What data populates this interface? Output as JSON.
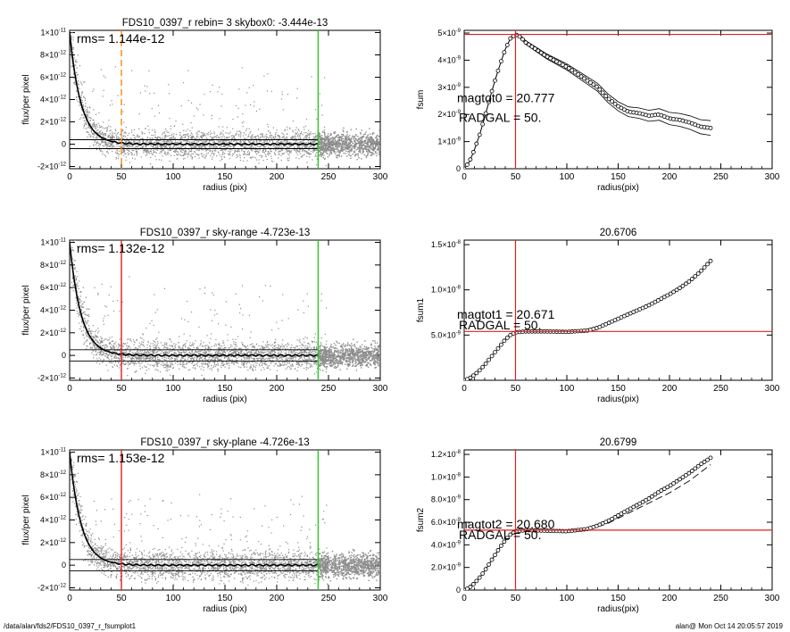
{
  "footer": {
    "path": "/data/alan/fds2/FDS10_0397_r_fsumplot1",
    "stamp": "alan@  Mon Oct 14 20:05:57 2019"
  },
  "colors": {
    "axis": "#000000",
    "scatter": "#8c8c8c",
    "profile": "#000000",
    "red": "#e02020",
    "green": "#22cc22",
    "orange": "#ff8800"
  },
  "chart_data": [
    {
      "id": "profile1",
      "type": "scatter",
      "title": "FDS10_0397_r rebin= 3    skybox0: -3.444e-13",
      "xlabel": "radius (pix)",
      "ylabel": "flux/per pixel",
      "xlim": [
        0,
        300
      ],
      "ylim": [
        -2.2e-12,
        1.02e-11
      ],
      "xticks": [
        0,
        50,
        100,
        150,
        200,
        250,
        300
      ],
      "yticks": [
        {
          "v": -2e-12,
          "m": "-2",
          "e": "-12"
        },
        {
          "v": 0,
          "m": "0",
          "e": ""
        },
        {
          "v": 2e-12,
          "m": "2",
          "e": "-12"
        },
        {
          "v": 4e-12,
          "m": "4",
          "e": "-12"
        },
        {
          "v": 6e-12,
          "m": "6",
          "e": "-12"
        },
        {
          "v": 8e-12,
          "m": "8",
          "e": "-12"
        },
        {
          "v": 1e-11,
          "m": "1",
          "e": "-11"
        }
      ],
      "annotation": "rms= 1.144e-12",
      "rms_band": [
        -4e-13,
        4e-13
      ],
      "vlines": [
        {
          "x": 50,
          "color": "orange",
          "dashed": true
        },
        {
          "x": 240,
          "color": "green",
          "dashed": false
        }
      ],
      "profile_peak": 1e-11,
      "profile_scale": 11,
      "scatter_spread": 1.144e-12,
      "scatter_extent": 248
    },
    {
      "id": "fsum1",
      "type": "line",
      "title": "",
      "xlabel": "radius(pix)",
      "ylabel": "fsum",
      "xlim": [
        0,
        300
      ],
      "ylim": [
        0,
        5.1e-09
      ],
      "xticks": [
        0,
        50,
        100,
        150,
        200,
        250,
        300
      ],
      "yticks": [
        {
          "v": 0,
          "m": "0",
          "e": ""
        },
        {
          "v": 1e-09,
          "m": "1",
          "e": "-9"
        },
        {
          "v": 2e-09,
          "m": "2",
          "e": "-9"
        },
        {
          "v": 3e-09,
          "m": "3",
          "e": "-9"
        },
        {
          "v": 4e-09,
          "m": "4",
          "e": "-9"
        },
        {
          "v": 5e-09,
          "m": "5",
          "e": "-9"
        }
      ],
      "annotations": [
        "magtot0 =  20.777",
        "RADGAL =     50."
      ],
      "hline": 4.95e-09,
      "vline": 50,
      "curve": [
        [
          0,
          0.0
        ],
        [
          5,
          2.5e-10
        ],
        [
          10,
          7e-10
        ],
        [
          15,
          1.25e-09
        ],
        [
          20,
          1.9e-09
        ],
        [
          25,
          2.6e-09
        ],
        [
          30,
          3.25e-09
        ],
        [
          35,
          3.85e-09
        ],
        [
          40,
          4.4e-09
        ],
        [
          45,
          4.8e-09
        ],
        [
          50,
          4.95e-09
        ],
        [
          55,
          4.85e-09
        ],
        [
          60,
          4.65e-09
        ],
        [
          70,
          4.4e-09
        ],
        [
          80,
          4.15e-09
        ],
        [
          90,
          3.95e-09
        ],
        [
          100,
          3.75e-09
        ],
        [
          110,
          3.5e-09
        ],
        [
          120,
          3.25e-09
        ],
        [
          130,
          3e-09
        ],
        [
          140,
          2.6e-09
        ],
        [
          150,
          2.3e-09
        ],
        [
          160,
          2.1e-09
        ],
        [
          170,
          2.05e-09
        ],
        [
          180,
          1.95e-09
        ],
        [
          190,
          2e-09
        ],
        [
          200,
          1.85e-09
        ],
        [
          210,
          1.8e-09
        ],
        [
          220,
          1.7e-09
        ],
        [
          230,
          1.55e-09
        ],
        [
          240,
          1.5e-09
        ]
      ],
      "envelope": 2.7e-10
    },
    {
      "id": "profile2",
      "type": "scatter",
      "title": "FDS10_0397_r sky-range -4.723e-13",
      "xlabel": "radius (pix)",
      "ylabel": "flux/per pixel",
      "xlim": [
        0,
        300
      ],
      "ylim": [
        -2.2e-12,
        1.02e-11
      ],
      "xticks": [
        0,
        50,
        100,
        150,
        200,
        250,
        300
      ],
      "yticks": [
        {
          "v": -2e-12,
          "m": "-2",
          "e": "-12"
        },
        {
          "v": 0,
          "m": "0",
          "e": ""
        },
        {
          "v": 2e-12,
          "m": "2",
          "e": "-12"
        },
        {
          "v": 4e-12,
          "m": "4",
          "e": "-12"
        },
        {
          "v": 6e-12,
          "m": "6",
          "e": "-12"
        },
        {
          "v": 8e-12,
          "m": "8",
          "e": "-12"
        },
        {
          "v": 1e-11,
          "m": "1",
          "e": "-11"
        }
      ],
      "annotation": "rms= 1.132e-12",
      "rms_band": [
        -5e-13,
        5e-13
      ],
      "vlines": [
        {
          "x": 50,
          "color": "red",
          "dashed": false
        },
        {
          "x": 240,
          "color": "green",
          "dashed": false
        }
      ],
      "profile_peak": 1e-11,
      "profile_scale": 11,
      "scatter_spread": 1.132e-12,
      "scatter_extent": 248
    },
    {
      "id": "fsum2",
      "type": "line",
      "title": "20.6706",
      "xlabel": "radius(pix)",
      "ylabel": "fsum1",
      "xlim": [
        0,
        300
      ],
      "ylim": [
        0,
        1.55e-08
      ],
      "xticks": [
        0,
        50,
        100,
        150,
        200,
        250,
        300
      ],
      "yticks": [
        {
          "v": 5e-09,
          "m": "5.0",
          "e": "-9"
        },
        {
          "v": 1e-08,
          "m": "1.0",
          "e": "-8"
        },
        {
          "v": 1.5e-08,
          "m": "1.5",
          "e": "-8"
        }
      ],
      "annotations": [
        "magtot1 =  20.671",
        "RADGAL =     50."
      ],
      "hline": 5.4e-09,
      "vline": 50,
      "curve": [
        [
          0,
          0.0
        ],
        [
          5,
          2e-10
        ],
        [
          10,
          6e-10
        ],
        [
          15,
          1.1e-09
        ],
        [
          20,
          1.7e-09
        ],
        [
          25,
          2.4e-09
        ],
        [
          30,
          3.1e-09
        ],
        [
          35,
          3.8e-09
        ],
        [
          40,
          4.5e-09
        ],
        [
          45,
          5e-09
        ],
        [
          50,
          5.3e-09
        ],
        [
          60,
          5.4e-09
        ],
        [
          80,
          5.4e-09
        ],
        [
          100,
          5.35e-09
        ],
        [
          120,
          5.5e-09
        ],
        [
          130,
          5.8e-09
        ],
        [
          140,
          6.3e-09
        ],
        [
          150,
          6.8e-09
        ],
        [
          160,
          7.3e-09
        ],
        [
          170,
          7.8e-09
        ],
        [
          180,
          8.3e-09
        ],
        [
          190,
          8.9e-09
        ],
        [
          200,
          9.5e-09
        ],
        [
          210,
          1.02e-08
        ],
        [
          220,
          1.1e-08
        ],
        [
          230,
          1.2e-08
        ],
        [
          240,
          1.32e-08
        ]
      ],
      "envelope": 0
    },
    {
      "id": "profile3",
      "type": "scatter",
      "title": "FDS10_0397_r sky-plane -4.726e-13",
      "xlabel": "radius (pix)",
      "ylabel": "flux/per pixel",
      "xlim": [
        0,
        300
      ],
      "ylim": [
        -2.2e-12,
        1.02e-11
      ],
      "xticks": [
        0,
        50,
        100,
        150,
        200,
        250,
        300
      ],
      "yticks": [
        {
          "v": -2e-12,
          "m": "-2",
          "e": "-12"
        },
        {
          "v": 0,
          "m": "0",
          "e": ""
        },
        {
          "v": 2e-12,
          "m": "2",
          "e": "-12"
        },
        {
          "v": 4e-12,
          "m": "4",
          "e": "-12"
        },
        {
          "v": 6e-12,
          "m": "6",
          "e": "-12"
        },
        {
          "v": 8e-12,
          "m": "8",
          "e": "-12"
        },
        {
          "v": 1e-11,
          "m": "1",
          "e": "-11"
        }
      ],
      "annotation": "rms= 1.153e-12",
      "rms_band": [
        -5e-13,
        5e-13
      ],
      "vlines": [
        {
          "x": 50,
          "color": "red",
          "dashed": false
        },
        {
          "x": 240,
          "color": "green",
          "dashed": false
        }
      ],
      "profile_peak": 1e-11,
      "profile_scale": 11,
      "scatter_spread": 1.153e-12,
      "scatter_extent": 248
    },
    {
      "id": "fsum3",
      "type": "line",
      "title": "20.6799",
      "xlabel": "radius(pix)",
      "ylabel": "fsum2",
      "xlim": [
        0,
        300
      ],
      "ylim": [
        0,
        1.24e-08
      ],
      "xticks": [
        0,
        50,
        100,
        150,
        200,
        250,
        300
      ],
      "yticks": [
        {
          "v": 0,
          "m": "0",
          "e": ""
        },
        {
          "v": 2e-09,
          "m": "2.0",
          "e": "-9"
        },
        {
          "v": 4e-09,
          "m": "4.0",
          "e": "-9"
        },
        {
          "v": 6e-09,
          "m": "6.0",
          "e": "-9"
        },
        {
          "v": 8e-09,
          "m": "8.0",
          "e": "-9"
        },
        {
          "v": 1e-08,
          "m": "1.0",
          "e": "-8"
        },
        {
          "v": 1.2e-08,
          "m": "1.2",
          "e": "-8"
        }
      ],
      "annotations": [
        "magtot2 =  20.680",
        "RADGAL =     50."
      ],
      "hline": 5.3e-09,
      "vline": 50,
      "curve": [
        [
          0,
          0.0
        ],
        [
          5,
          2e-10
        ],
        [
          10,
          6e-10
        ],
        [
          15,
          1.1e-09
        ],
        [
          20,
          1.7e-09
        ],
        [
          25,
          2.4e-09
        ],
        [
          30,
          3.1e-09
        ],
        [
          35,
          3.8e-09
        ],
        [
          40,
          4.4e-09
        ],
        [
          45,
          4.9e-09
        ],
        [
          50,
          5.2e-09
        ],
        [
          60,
          5.3e-09
        ],
        [
          80,
          5.25e-09
        ],
        [
          100,
          5.2e-09
        ],
        [
          120,
          5.4e-09
        ],
        [
          130,
          5.7e-09
        ],
        [
          140,
          6.1e-09
        ],
        [
          150,
          6.6e-09
        ],
        [
          160,
          7.1e-09
        ],
        [
          170,
          7.6e-09
        ],
        [
          180,
          8.1e-09
        ],
        [
          190,
          8.7e-09
        ],
        [
          200,
          9.2e-09
        ],
        [
          210,
          9.8e-09
        ],
        [
          220,
          1.04e-08
        ],
        [
          230,
          1.11e-08
        ],
        [
          240,
          1.17e-08
        ]
      ],
      "dashed_curve": [
        [
          120,
          5.3e-09
        ],
        [
          140,
          5.9e-09
        ],
        [
          160,
          6.8e-09
        ],
        [
          180,
          7.7e-09
        ],
        [
          200,
          8.6e-09
        ],
        [
          220,
          9.7e-09
        ],
        [
          240,
          1.11e-08
        ]
      ],
      "envelope": 0
    }
  ]
}
